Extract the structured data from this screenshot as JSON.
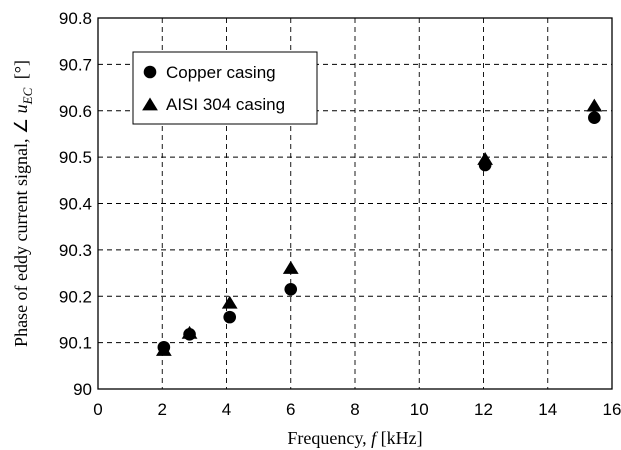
{
  "chart_data": {
    "type": "scatter",
    "xlabel": "Frequency,",
    "xlabel_symbol": "f",
    "xlabel_unit": "[kHz]",
    "ylabel": "Phase of eddy current signal, ∠",
    "ylabel_symbol": "u",
    "ylabel_subscript": "EC",
    "ylabel_unit": "[°]",
    "xlim": [
      0,
      16
    ],
    "ylim": [
      90,
      90.8
    ],
    "xticks": [
      "0",
      "2",
      "4",
      "6",
      "8",
      "10",
      "12",
      "14",
      "16"
    ],
    "yticks": [
      "90",
      "90.1",
      "90.2",
      "90.3",
      "90.4",
      "90.5",
      "90.6",
      "90.7",
      "90.8"
    ],
    "grid": true,
    "legend_position": "top-left",
    "series": [
      {
        "name": "Copper casing",
        "marker": "circle",
        "x": [
          2.05,
          2.85,
          4.1,
          6.0,
          12.05,
          15.45
        ],
        "y": [
          90.09,
          90.118,
          90.155,
          90.215,
          90.483,
          90.585
        ]
      },
      {
        "name": "AISI 304 casing",
        "marker": "triangle",
        "x": [
          2.05,
          2.85,
          4.1,
          6.0,
          12.05,
          15.45
        ],
        "y": [
          90.083,
          90.12,
          90.185,
          90.26,
          90.495,
          90.61
        ]
      }
    ]
  }
}
